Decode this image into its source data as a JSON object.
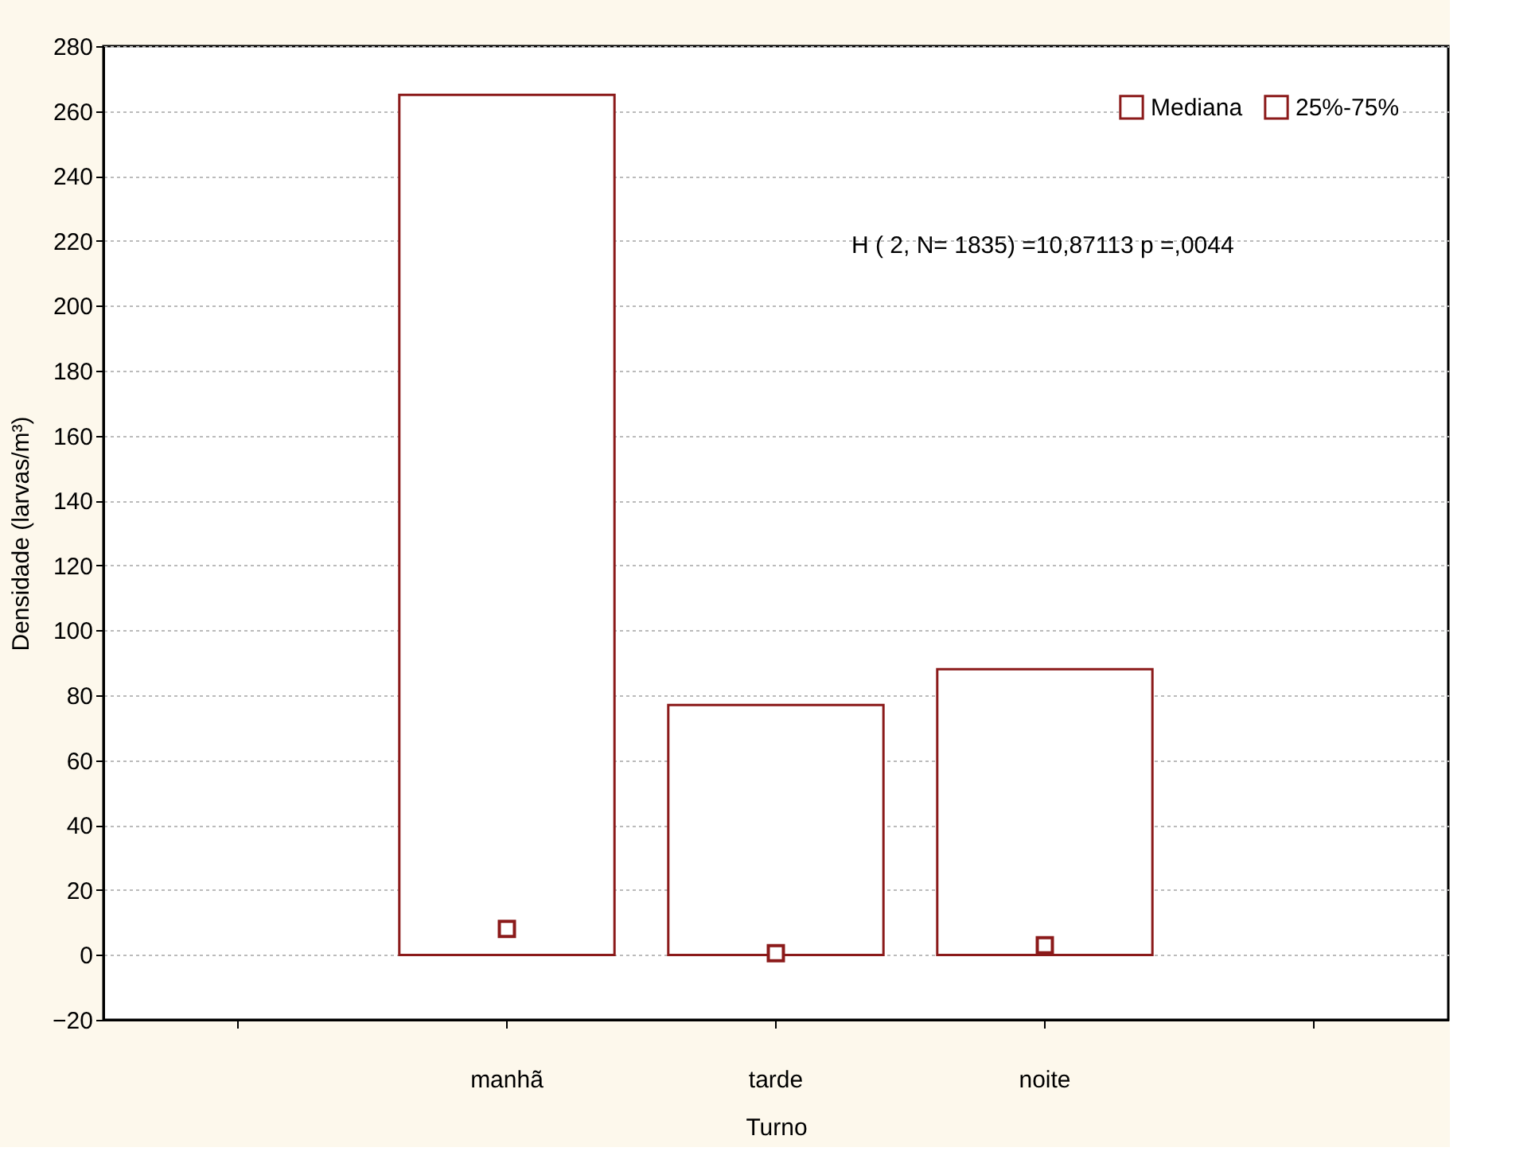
{
  "chart_data": {
    "type": "bar",
    "xlabel": "Turno",
    "ylabel": "Densidade (larvas/m³)",
    "categories": [
      null,
      "manhã",
      "tarde",
      "noite",
      null
    ],
    "series": [
      {
        "name": "Mediana",
        "type": "scatter",
        "color": "#8b1a1a",
        "marker": "square",
        "values": [
          null,
          8,
          0.5,
          3,
          null
        ]
      },
      {
        "name": "25%-75%",
        "color": "#8b1a1a",
        "base": [
          null,
          0,
          0,
          0,
          null
        ],
        "values": [
          null,
          265,
          77,
          88,
          null
        ]
      }
    ],
    "ylim": [
      -20,
      280
    ],
    "yticks": [
      -20,
      0,
      20,
      40,
      60,
      80,
      100,
      120,
      140,
      160,
      180,
      200,
      220,
      240,
      260,
      280
    ],
    "grid": "y",
    "legend": "top right",
    "annotations": [
      "H ( 2, N= 1835) =10,87113 p =,0044"
    ]
  }
}
